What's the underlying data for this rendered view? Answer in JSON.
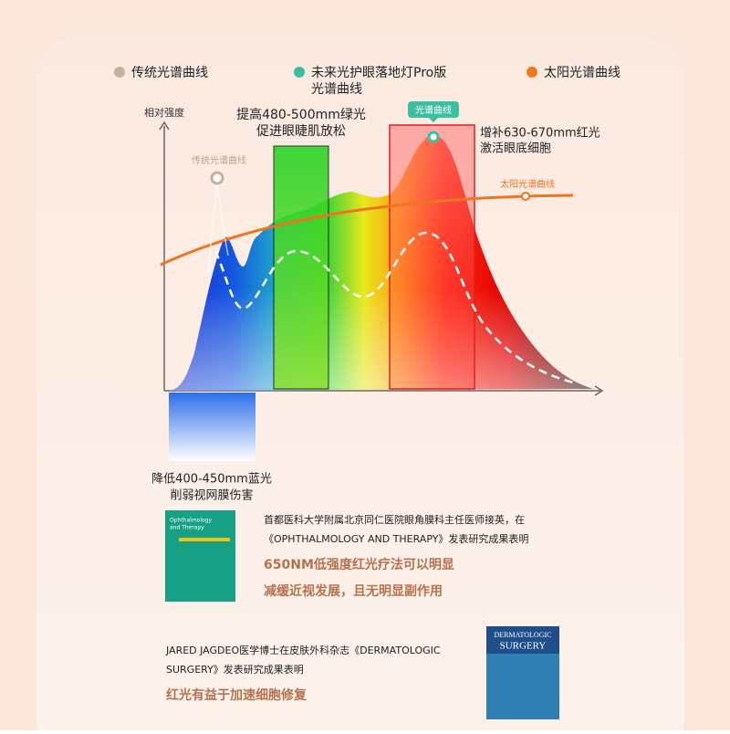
{
  "legend": {
    "items": [
      {
        "label": "传统光谱曲线",
        "color": "#c2b29c"
      },
      {
        "label": [
          "未来光护眼落地灯Pro版",
          "光谱曲线"
        ],
        "color": "#3bbfa3"
      },
      {
        "label": "太阳光谱曲线",
        "color": "#f07a1a"
      }
    ]
  },
  "chart": {
    "y_axis_label": "相对强度",
    "green_note": [
      "提高480-500mm绿光",
      "促进眼睫肌放松"
    ],
    "red_note": [
      "增补630-670mm红光",
      "激活眼底细胞"
    ],
    "blue_note": [
      "降低400-450mm蓝光",
      "削弱视网膜伤害"
    ],
    "spectrum_tag": "光谱曲线",
    "traditional_tag": "传统光谱曲线",
    "sun_tag": "太阳光谱曲线"
  },
  "studies": [
    {
      "lines": [
        "首都医科大学附属北京同仁医院眼角膜科主任医师接英，在",
        "《OPHTHALMOLOGY AND THERAPY》发表研究成果表明"
      ],
      "highlight": [
        "650NM低强度红光疗法可以明显",
        "减缓近视发展，且无明显副作用"
      ],
      "cover": [
        "Ophthalmology",
        "and Therapy"
      ]
    },
    {
      "lines": [
        "JARED JAGDEO医学博士在皮肤外科杂志《DERMATOLOGIC",
        "SURGERY》发表研究成果表明"
      ],
      "highlight": [
        "红光有益于加速细胞修复"
      ],
      "cover": [
        "DERMATOLOGIC",
        "SURGERY"
      ]
    }
  ]
}
